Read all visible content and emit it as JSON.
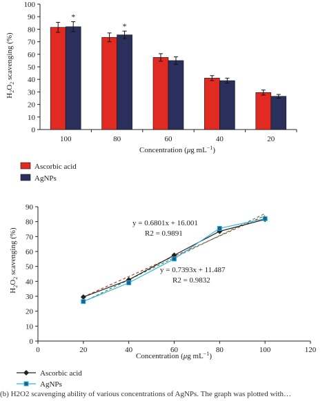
{
  "chart_data": [
    {
      "type": "bar",
      "title": "",
      "ylabel": "H2O2 scavenging (%)",
      "xlabel": "Concentration (μg mL−1)",
      "ylim": [
        0,
        100
      ],
      "yticks": [
        0,
        10,
        20,
        30,
        40,
        50,
        60,
        70,
        80,
        90,
        100
      ],
      "categories": [
        "100",
        "80",
        "60",
        "40",
        "20"
      ],
      "series": [
        {
          "name": "Ascorbic acid",
          "color": "#e02a22",
          "values": [
            81.5,
            73.5,
            57.5,
            41,
            29.5
          ],
          "errors": [
            4,
            3.5,
            3,
            2,
            2
          ]
        },
        {
          "name": "AgNPs",
          "color": "#2b2f5c",
          "values": [
            82,
            75.5,
            55,
            39,
            26.5
          ],
          "errors": [
            4,
            3,
            3,
            2,
            1.5
          ]
        }
      ],
      "annotations": [
        "*",
        "*",
        "",
        "",
        ""
      ],
      "legend_position": "bottom-left"
    },
    {
      "type": "scatter",
      "title": "",
      "ylabel": "H2O2 scavenging (%)",
      "xlabel": "Concentration (μg mL−1)",
      "xlim": [
        0,
        120
      ],
      "ylim": [
        0,
        90
      ],
      "xticks": [
        0,
        20,
        40,
        60,
        80,
        100,
        120
      ],
      "yticks": [
        0,
        10,
        20,
        30,
        40,
        50,
        60,
        70,
        80,
        90
      ],
      "series": [
        {
          "name": "Ascorbic acid",
          "color": "#222222",
          "marker": "diamond",
          "x": [
            20,
            40,
            60,
            80,
            100
          ],
          "y": [
            29.5,
            41,
            57.5,
            73.5,
            81.5
          ]
        },
        {
          "name": "AgNPs",
          "color": "#2bb5e0",
          "marker": "square",
          "x": [
            20,
            40,
            60,
            80,
            100
          ],
          "y": [
            26.5,
            39,
            55,
            75.5,
            82
          ]
        }
      ],
      "trendlines": [
        {
          "color": "#c0392b",
          "slope": 0.6801,
          "intercept": 16.001,
          "x_range": [
            20,
            100
          ],
          "equation": "y = 0.6801x + 16.001",
          "r2": "R2 = 0.9891"
        },
        {
          "color": "#2e8b57",
          "slope": 0.7393,
          "intercept": 11.487,
          "x_range": [
            20,
            100
          ],
          "equation": "y = 0.7393x + 11.487",
          "r2": "R2 = 0.9832"
        }
      ],
      "legend_position": "bottom-left"
    }
  ],
  "caption_text": "(b) H2O2 scavenging ability of various concentrations of AgNPs. The graph was plotted with…"
}
